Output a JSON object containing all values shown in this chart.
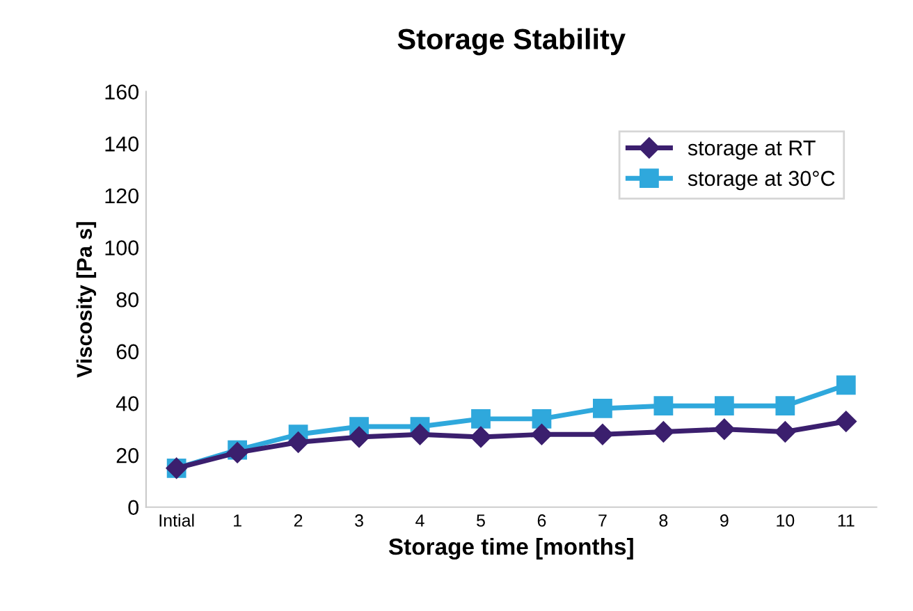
{
  "chart_data": {
    "type": "line",
    "title": "Storage Stability",
    "xlabel": "Storage time [months]",
    "ylabel": "Viscosity [Pa s]",
    "categories": [
      "Intial",
      "1",
      "2",
      "3",
      "4",
      "5",
      "6",
      "7",
      "8",
      "9",
      "10",
      "11"
    ],
    "series": [
      {
        "name": "storage at RT",
        "color": "#3b1f6e",
        "marker": "diamond",
        "values": [
          15,
          21,
          25,
          27,
          28,
          27,
          28,
          28,
          29,
          30,
          29,
          33
        ]
      },
      {
        "name": "storage at 30°C",
        "color": "#2fa8dc",
        "marker": "square",
        "values": [
          15,
          22,
          28,
          31,
          31,
          34,
          34,
          38,
          39,
          39,
          39,
          47
        ]
      }
    ],
    "ylim": [
      0,
      160
    ],
    "yticks": [
      0,
      20,
      40,
      60,
      80,
      100,
      120,
      140,
      160
    ],
    "grid": false,
    "legend": "top right",
    "line_style": "solid"
  }
}
